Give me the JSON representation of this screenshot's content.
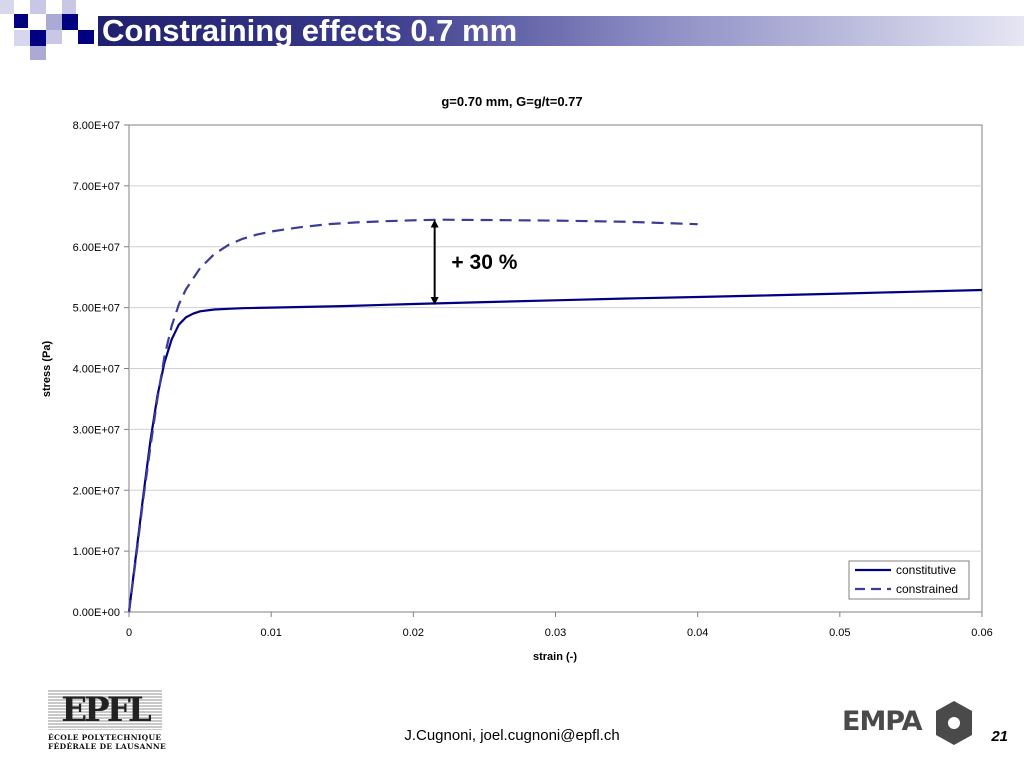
{
  "slide": {
    "title": "Constraining effects 0.7 mm",
    "footer_email": "J.Cugnoni, joel.cugnoni@epfl.ch",
    "page_number": "21",
    "epfl_logo": {
      "mark": "EPFL",
      "line1": "ÉCOLE POLYTECHNIQUE",
      "line2": "FÉDÉRALE DE LAUSANNE"
    },
    "empa_logo": {
      "text": "EMPA"
    },
    "colors": {
      "accent": "#20206e",
      "series": "#000080",
      "series_dashed": "#3b3b9a"
    }
  },
  "chart_data": {
    "type": "line",
    "title": "g=0.70 mm, G=g/t=0.77",
    "xlabel": "strain (-)",
    "ylabel": "stress (Pa)",
    "xlim": [
      0,
      0.06
    ],
    "ylim": [
      0,
      80000000
    ],
    "xticks": [
      0,
      0.01,
      0.02,
      0.03,
      0.04,
      0.05,
      0.06
    ],
    "xtick_labels": [
      "0",
      "0.01",
      "0.02",
      "0.03",
      "0.04",
      "0.05",
      "0.06"
    ],
    "yticks": [
      0,
      10000000,
      20000000,
      30000000,
      40000000,
      50000000,
      60000000,
      70000000,
      80000000
    ],
    "ytick_labels": [
      "0.00E+00",
      "1.00E+07",
      "2.00E+07",
      "3.00E+07",
      "4.00E+07",
      "5.00E+07",
      "6.00E+07",
      "7.00E+07",
      "8.00E+07"
    ],
    "grid": "horizontal",
    "legend": "bottom-right",
    "series": [
      {
        "name": "constitutive",
        "style": "solid",
        "color": "#000080",
        "x": [
          0,
          0.0005,
          0.001,
          0.0015,
          0.002,
          0.0025,
          0.003,
          0.0035,
          0.004,
          0.0045,
          0.005,
          0.006,
          0.007,
          0.008,
          0.009,
          0.01,
          0.015,
          0.02,
          0.025,
          0.03,
          0.035,
          0.04,
          0.045,
          0.05,
          0.055,
          0.06
        ],
        "y": [
          0,
          9500000,
          19000000,
          28000000,
          35500000,
          41000000,
          44800000,
          47200000,
          48400000,
          49000000,
          49400000,
          49700000,
          49800000,
          49900000,
          49950000,
          50000000,
          50250000,
          50600000,
          50900000,
          51200000,
          51500000,
          51750000,
          52000000,
          52300000,
          52600000,
          52900000
        ]
      },
      {
        "name": "constrained",
        "style": "dashed",
        "color": "#3b3b9a",
        "x": [
          0,
          0.0005,
          0.001,
          0.0015,
          0.002,
          0.0025,
          0.003,
          0.0035,
          0.004,
          0.005,
          0.006,
          0.007,
          0.008,
          0.009,
          0.01,
          0.012,
          0.014,
          0.016,
          0.018,
          0.02,
          0.022,
          0.025,
          0.03,
          0.035,
          0.04
        ],
        "y": [
          0,
          9000000,
          18500000,
          27000000,
          35000000,
          42000000,
          47000000,
          50500000,
          53000000,
          56500000,
          58800000,
          60300000,
          61300000,
          62000000,
          62500000,
          63200000,
          63700000,
          64000000,
          64200000,
          64350000,
          64450000,
          64400000,
          64300000,
          64100000,
          63700000
        ]
      }
    ],
    "annotations": [
      {
        "text": "+ 30 %",
        "arrow_x": 0.0215,
        "arrow_y_from": 50600000,
        "arrow_y_to": 64300000,
        "text_x": 0.025,
        "text_y": 57500000
      }
    ]
  }
}
